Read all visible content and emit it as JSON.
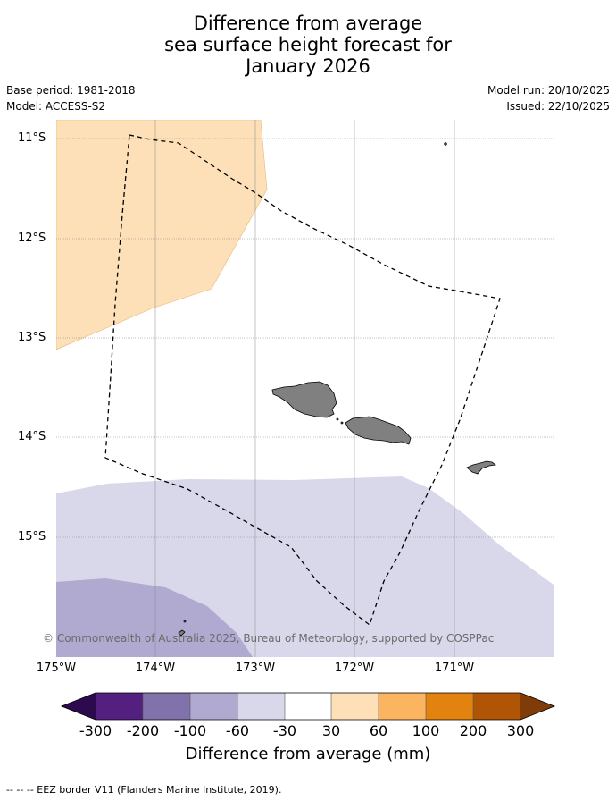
{
  "title": {
    "line1": "Difference from average",
    "line2": "sea surface height forecast for",
    "line3": "January 2026"
  },
  "meta": {
    "base_period": "Base period: 1981-2018",
    "model": "Model: ACCESS-S2",
    "model_run": "Model run: 20/10/2025",
    "issued": "Issued: 22/10/2025"
  },
  "map": {
    "lat_labels": [
      "11°S",
      "12°S",
      "13°S",
      "14°S",
      "15°S"
    ],
    "lon_labels": [
      "175°W",
      "174°W",
      "173°W",
      "172°W",
      "171°W"
    ],
    "copyright": "© Commonwealth of Australia 2025, Bureau of Meteorology, supported by COSPPac",
    "land_color": "#808080",
    "eez_border_color": "#000000"
  },
  "colorbar": {
    "ticks": [
      "-300",
      "-200",
      "-100",
      "-60",
      "-30",
      "30",
      "60",
      "100",
      "200",
      "300"
    ],
    "colors": [
      "#2d0a4e",
      "#54207f",
      "#8272ab",
      "#b0a9d0",
      "#d8d8ea",
      "#ffffff",
      "#fde0b7",
      "#fbb561",
      "#e2830f",
      "#b05506",
      "#7f3b08"
    ],
    "title": "Difference from average (mm)"
  },
  "footer": {
    "eez_legend": "--  --  -- EEZ border V11 (Flanders Marine Institute, 2019)."
  }
}
